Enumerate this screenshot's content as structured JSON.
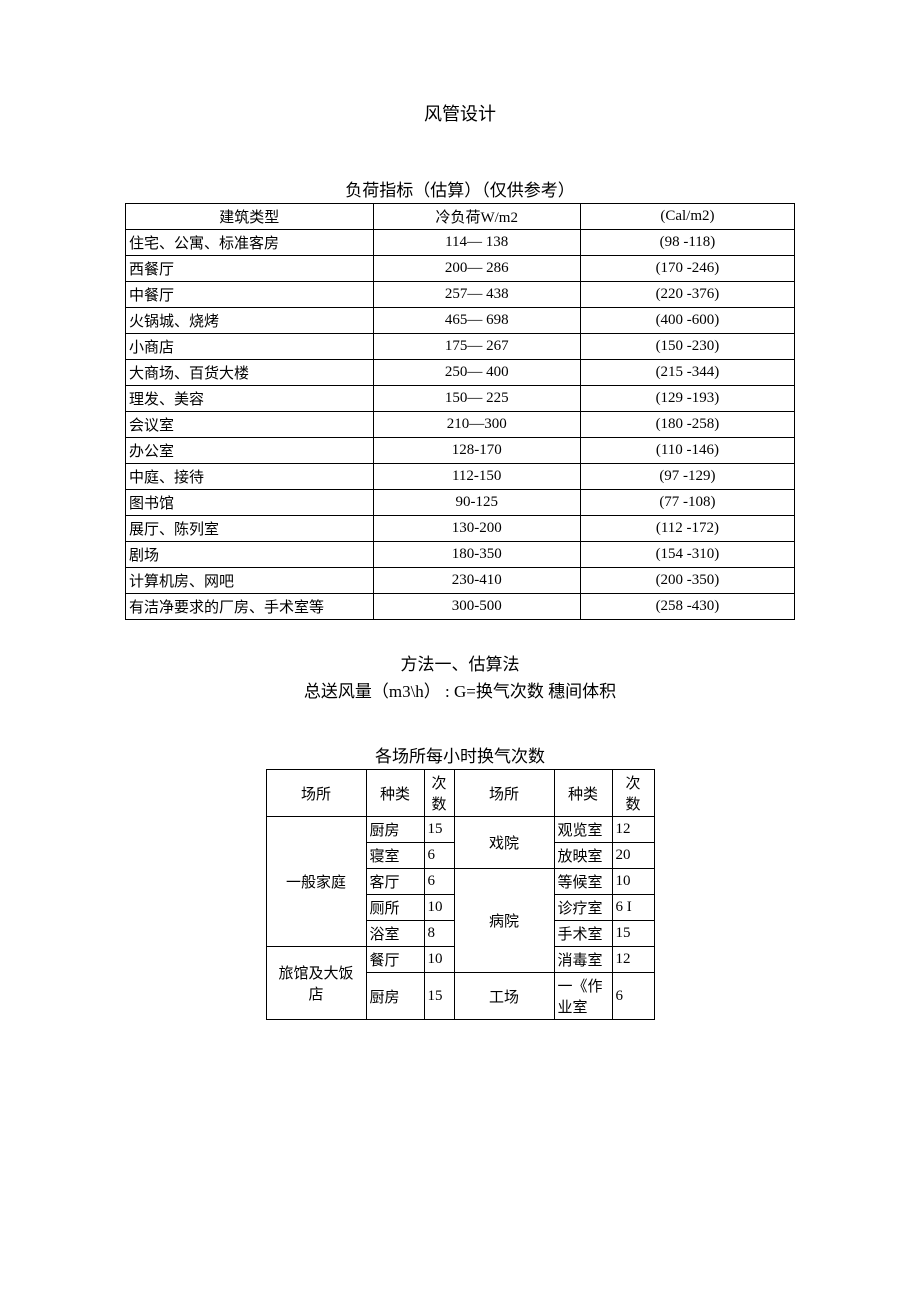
{
  "docTitle": "风管设计",
  "table1": {
    "title": "负荷指标（估算）（仅供参考）",
    "headers": [
      "建筑类型",
      "冷负荷W/m2",
      "(Cal/m2)"
    ],
    "rows": [
      [
        "住宅、公寓、标准客房",
        "114— 138",
        "(98 -118)"
      ],
      [
        "西餐厅",
        "200— 286",
        "(170 -246)"
      ],
      [
        "中餐厅",
        "257— 438",
        "(220 -376)"
      ],
      [
        "火锅城、烧烤",
        "465— 698",
        "(400 -600)"
      ],
      [
        "小商店",
        "175— 267",
        "(150 -230)"
      ],
      [
        "大商场、百货大楼",
        "250— 400",
        "(215 -344)"
      ],
      [
        "理发、美容",
        "150— 225",
        "(129 -193)"
      ],
      [
        "会议室",
        "210—300",
        "(180 -258)"
      ],
      [
        "办公室",
        "128-170",
        "(110 -146)"
      ],
      [
        "中庭、接待",
        "112-150",
        "(97 -129)"
      ],
      [
        "图书馆",
        "90-125",
        "(77 -108)"
      ],
      [
        "展厅、陈列室",
        "130-200",
        "(112 -172)"
      ],
      [
        "剧场",
        "180-350",
        "(154 -310)"
      ],
      [
        "计算机房、网吧",
        "230-410",
        "(200 -350)"
      ],
      [
        "有洁净要求的厂房、手术室等",
        "300-500",
        "(258 -430)"
      ]
    ]
  },
  "methodLine1": "方法一、估算法",
  "methodLine2": "总送风量（m3\\h） : G=换气次数 穗间体积",
  "table2": {
    "title": "各场所每小时换气次数",
    "headers": [
      "场所",
      "种类",
      "次数",
      "场所",
      "种类",
      "次数"
    ],
    "countHeaderShort": "次\n数",
    "row1": {
      "placeA": "一般家庭",
      "kindA": "厨房",
      "cntA": "15",
      "placeB": "戏院",
      "kindB": "观览室",
      "cntB": "12"
    },
    "row2": {
      "kindA": "寝室",
      "cntA": "6",
      "kindB": "放映室",
      "cntB": "20"
    },
    "row3": {
      "kindA": "客厅",
      "cntA": "6",
      "placeB": "病院",
      "kindB": "等候室",
      "cntB": "10"
    },
    "row4": {
      "kindA": "厕所",
      "cntA": "10",
      "kindB": "诊疗室",
      "cntB": "6 I"
    },
    "row5": {
      "kindA": "浴室",
      "cntA": "8",
      "kindB": "手术室",
      "cntB": "15"
    },
    "row6": {
      "placeA": "旅馆及大饭 店",
      "kindA": "餐厅",
      "cntA": "10",
      "kindB": "消毒室",
      "cntB": "12"
    },
    "row7": {
      "kindA": "厨房",
      "cntA": "15",
      "placeB": "工场",
      "kindB": "一《作业室",
      "cntB": "6"
    }
  }
}
